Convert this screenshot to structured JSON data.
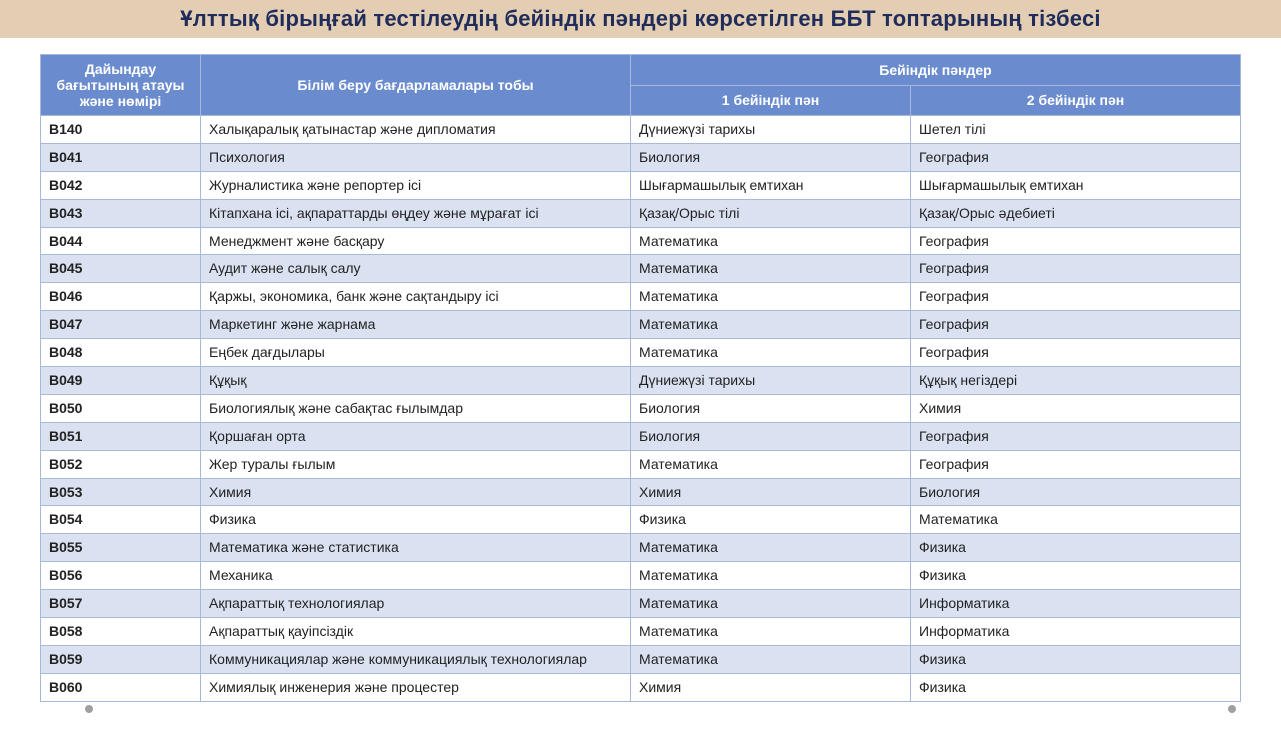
{
  "title": "Ұлттық бірыңғай тестілеудің бейіндік пәндері көрсетілген ББТ топтарының тізбесі",
  "colors": {
    "title_bg": "#e3ceb4",
    "title_text": "#202d5a",
    "header_bg": "#6a8cce",
    "header_text": "#ffffff",
    "border": "#a8b8da",
    "row_even": "#ffffff",
    "row_odd": "#dae2f1"
  },
  "columns": {
    "code": "Дайындау бағытының атауы және нөмірі",
    "program": "Білім беру бағдарламалары тобы",
    "profile_group": "Бейіндік пәндер",
    "subject1": "1 бейіндік пән",
    "subject2": "2 бейіндік пән"
  },
  "rows": [
    {
      "code": "B140",
      "program": "Халықаралық қатынастар және дипломатия",
      "s1": "Дүниежүзі тарихы",
      "s2": "Шетел тілі"
    },
    {
      "code": "B041",
      "program": "Психология",
      "s1": "Биология",
      "s2": "География"
    },
    {
      "code": "B042",
      "program": "Журналистика және репортер ісі",
      "s1": "Шығармашылық емтихан",
      "s2": "Шығармашылық емтихан"
    },
    {
      "code": "B043",
      "program": "Кітапхана ісі, ақпараттарды өңдеу және мұрағат ісі",
      "s1": "Қазақ/Орыс тілі",
      "s2": "Қазақ/Орыс әдебиеті"
    },
    {
      "code": "B044",
      "program": "Менеджмент және басқару",
      "s1": "Математика",
      "s2": "География"
    },
    {
      "code": "B045",
      "program": "Аудит және салық салу",
      "s1": "Математика",
      "s2": "География"
    },
    {
      "code": "B046",
      "program": "Қаржы, экономика, банк және сақтандыру ісі",
      "s1": "Математика",
      "s2": "География"
    },
    {
      "code": "B047",
      "program": "Маркетинг және жарнама",
      "s1": "Математика",
      "s2": "География"
    },
    {
      "code": "B048",
      "program": "Еңбек дағдылары",
      "s1": "Математика",
      "s2": "География"
    },
    {
      "code": "B049",
      "program": "Құқық",
      "s1": "Дүниежүзі тарихы",
      "s2": "Құқық негіздері"
    },
    {
      "code": "B050",
      "program": "Биологиялық және сабақтас ғылымдар",
      "s1": "Биология",
      "s2": "Химия"
    },
    {
      "code": "B051",
      "program": "Қоршаған орта",
      "s1": "Биология",
      "s2": "География"
    },
    {
      "code": "B052",
      "program": "Жер туралы ғылым",
      "s1": "Математика",
      "s2": "География"
    },
    {
      "code": "B053",
      "program": "Химия",
      "s1": "Химия",
      "s2": "Биология"
    },
    {
      "code": "B054",
      "program": "Физика",
      "s1": "Физика",
      "s2": "Математика"
    },
    {
      "code": "B055",
      "program": "Математика және статистика",
      "s1": "Математика",
      "s2": "Физика"
    },
    {
      "code": "B056",
      "program": "Механика",
      "s1": "Математика",
      "s2": "Физика"
    },
    {
      "code": "B057",
      "program": "Ақпараттық технологиялар",
      "s1": "Математика",
      "s2": "Информатика"
    },
    {
      "code": "B058",
      "program": "Ақпараттық қауіпсіздік",
      "s1": "Математика",
      "s2": "Информатика"
    },
    {
      "code": "B059",
      "program": "Коммуникациялар және коммуникациялық технологиялар",
      "s1": "Математика",
      "s2": "Физика"
    },
    {
      "code": "B060",
      "program": "Химиялық инженерия және процестер",
      "s1": "Химия",
      "s2": "Физика"
    }
  ]
}
